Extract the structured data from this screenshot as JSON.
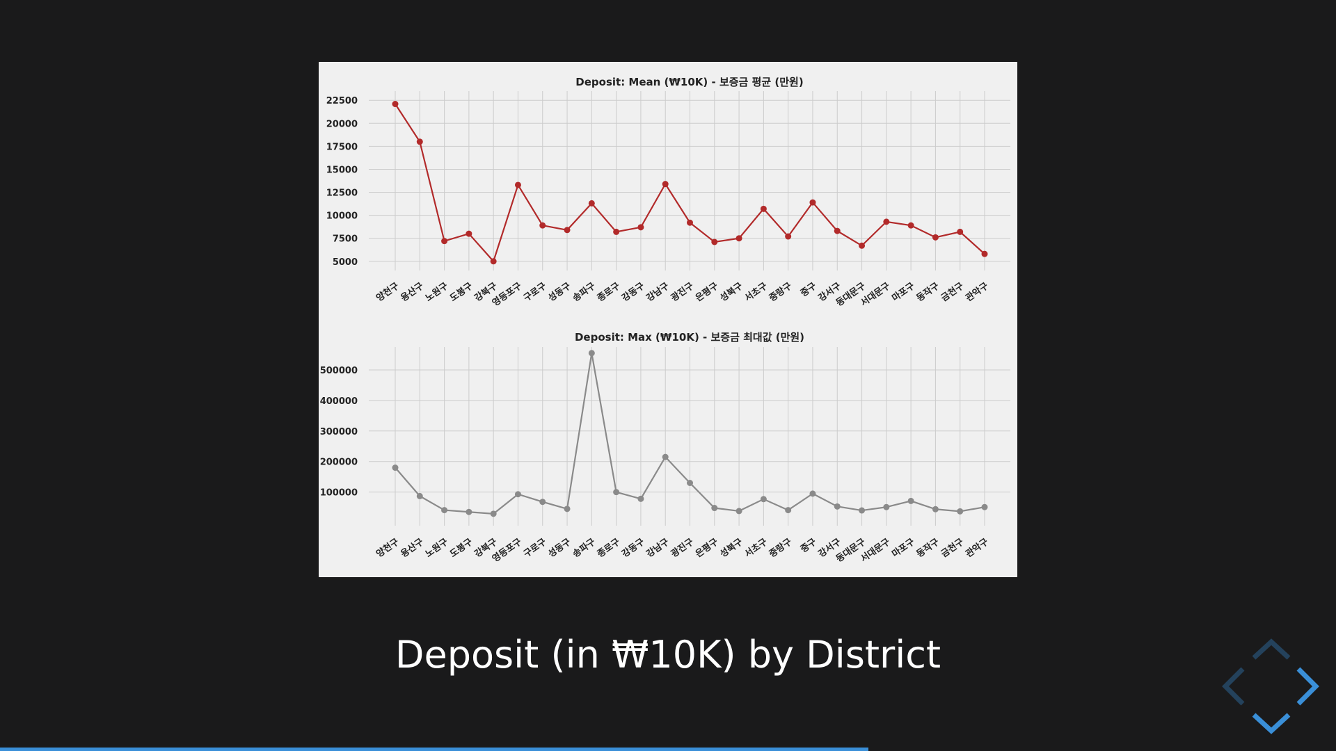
{
  "slide": {
    "caption": "Deposit (in ₩10K) by District",
    "progress": 0.65
  },
  "colors": {
    "background": "#1a1a1b",
    "figure_bg": "#f0f0f0",
    "accent": "#3a8fd8",
    "mean_series": "#b22a2a",
    "max_series": "#8a8a8a",
    "grid": "#cccccc"
  },
  "navigation": {
    "icons": [
      "chevron-up-icon",
      "chevron-left-icon",
      "chevron-right-icon",
      "chevron-down-icon"
    ],
    "enabled": {
      "up": false,
      "left": false,
      "right": true,
      "down": true
    }
  },
  "chart_data": [
    {
      "type": "line",
      "title": "Deposit: Mean (₩10K) - 보증금 평균 (만원)",
      "categories": [
        "양천구",
        "용산구",
        "노원구",
        "도봉구",
        "강북구",
        "영등포구",
        "구로구",
        "성동구",
        "송파구",
        "종로구",
        "강동구",
        "강남구",
        "광진구",
        "은평구",
        "성북구",
        "서초구",
        "중랑구",
        "중구",
        "강서구",
        "동대문구",
        "서대문구",
        "마포구",
        "동작구",
        "금천구",
        "관악구"
      ],
      "values": [
        22100,
        18000,
        7200,
        8000,
        5000,
        13300,
        8900,
        8400,
        11300,
        8200,
        8700,
        13400,
        9200,
        7100,
        7500,
        10700,
        7700,
        11400,
        8300,
        6700,
        9300,
        8900,
        7600,
        8200,
        5800
      ],
      "yticks": [
        5000,
        7500,
        10000,
        12500,
        15000,
        17500,
        20000,
        22500
      ],
      "ylim": [
        4000,
        23500
      ],
      "grid": true
    },
    {
      "type": "line",
      "title": "Deposit: Max (₩10K) - 보증금 최대값 (만원)",
      "categories": [
        "양천구",
        "용산구",
        "노원구",
        "도봉구",
        "강북구",
        "영등포구",
        "구로구",
        "성동구",
        "송파구",
        "종로구",
        "강동구",
        "강남구",
        "광진구",
        "은평구",
        "성북구",
        "서초구",
        "중랑구",
        "중구",
        "강서구",
        "동대문구",
        "서대문구",
        "마포구",
        "동작구",
        "금천구",
        "관악구"
      ],
      "values": [
        180000,
        87000,
        41000,
        35000,
        29000,
        93000,
        68000,
        45000,
        555000,
        100000,
        78000,
        215000,
        130000,
        48000,
        38000,
        77000,
        41000,
        95000,
        53000,
        40000,
        51000,
        71000,
        44000,
        37000,
        51000
      ],
      "yticks": [
        100000,
        200000,
        300000,
        400000,
        500000
      ],
      "ylim": [
        -10000,
        575000
      ],
      "grid": true
    }
  ]
}
